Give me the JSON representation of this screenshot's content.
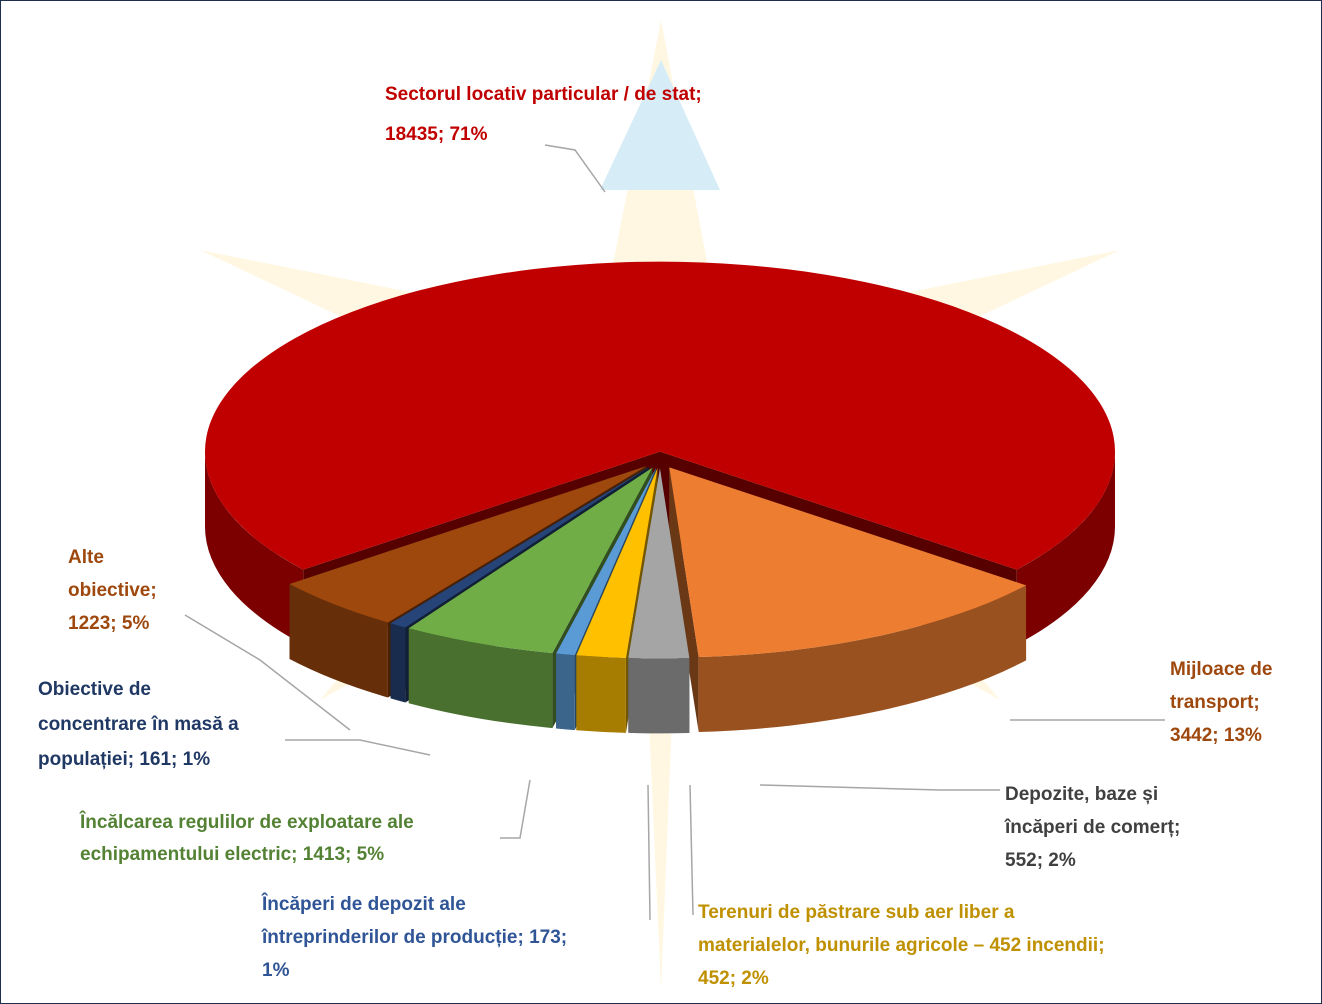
{
  "chart_data": {
    "type": "pie3d",
    "values": [
      18435,
      3442,
      552,
      452,
      173,
      1413,
      161,
      1223
    ],
    "value_labels": [
      [
        "Sectorul locativ particular / de stat;",
        "18435; 71%"
      ],
      [
        "Mijloace de",
        "transport;",
        "3442; 13%"
      ],
      [
        "Depozite, baze și",
        "încăperi de comerț;",
        "552; 2%"
      ],
      [
        "Terenuri de păstrare sub aer liber a",
        "materialelor, bunurile agricole – 452 incendii;",
        "452; 2%"
      ],
      [
        "Încăperi de depozit ale",
        "întreprinderilor de producție; 173;",
        "1%"
      ],
      [
        "Încălcarea regulilor de exploatare ale",
        "echipamentului electric; 1413; 5%"
      ],
      [
        "Obiective de",
        "concentrare în masă a",
        "populației; 161; 1%"
      ],
      [
        "Alte",
        "obiective;",
        "1223; 5%"
      ]
    ],
    "colors": [
      "#c00000",
      "#ed7d31",
      "#a5a5a5",
      "#ffc000",
      "#5b9bd5",
      "#70ad47",
      "#264478",
      "#9e480e"
    ],
    "label_colors": [
      "#c00000",
      "#9e480e",
      "#404040",
      "#bf9000",
      "#2f5597",
      "#548235",
      "#203864",
      "#9e480e"
    ]
  }
}
